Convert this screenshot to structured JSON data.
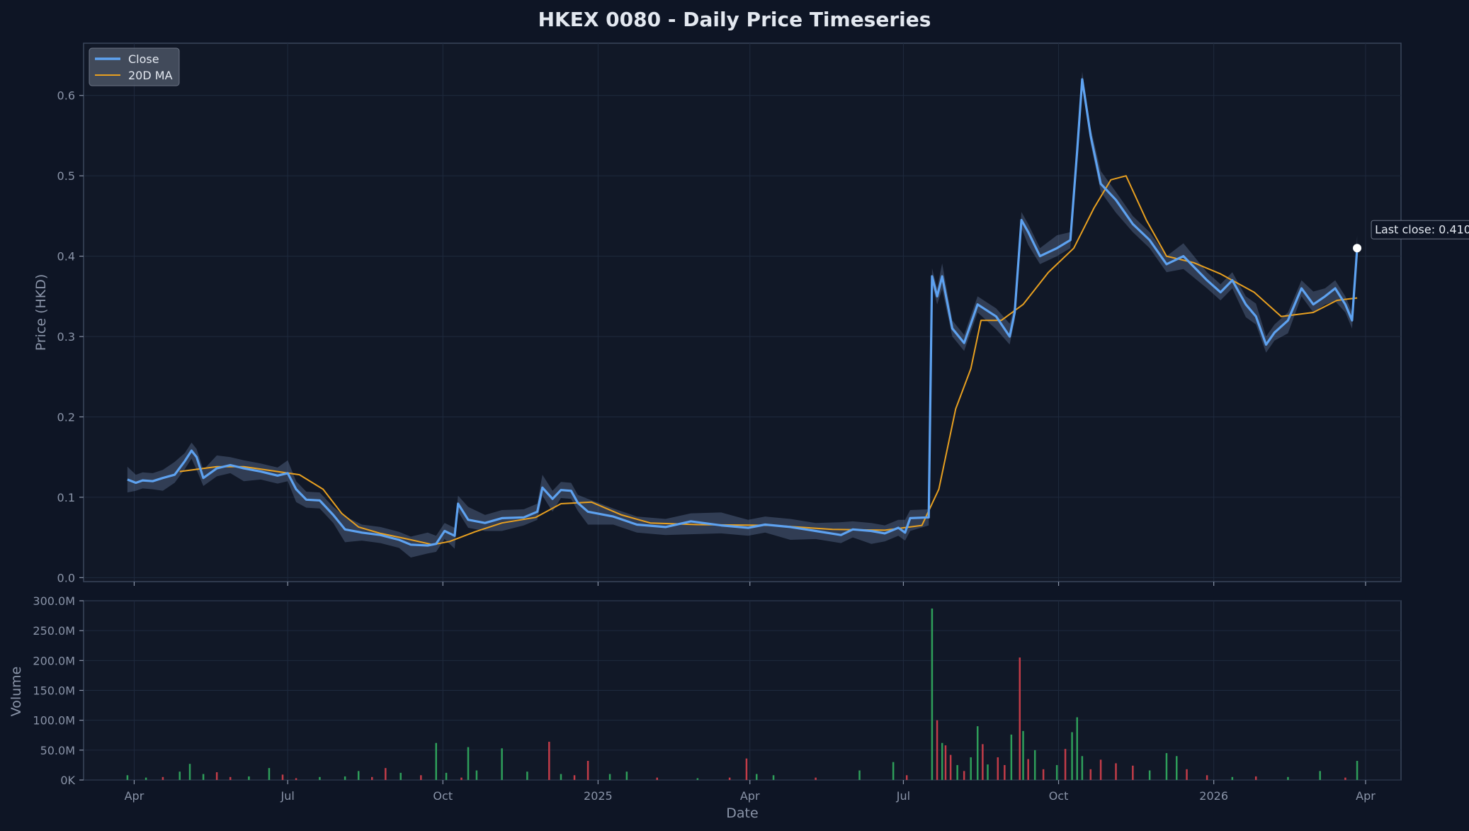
{
  "chart_data": {
    "type": "line",
    "title": "HKEX 0080 - Daily Price Timeseries",
    "xlabel": "Date",
    "ylabel": "Price (HKD)",
    "y2label": "Volume",
    "ylim": [
      -0.005,
      0.665
    ],
    "vol_ylim": [
      0,
      300000000
    ],
    "x_range": [
      "2024-03-02",
      "2026-04-22"
    ],
    "price_ticks": [
      "0.0",
      "0.1",
      "0.2",
      "0.3",
      "0.4",
      "0.5",
      "0.6"
    ],
    "price_tick_values": [
      0.0,
      0.1,
      0.2,
      0.3,
      0.4,
      0.5,
      0.6
    ],
    "volume_ticks": [
      "0K",
      "50.0M",
      "100.0M",
      "150.0M",
      "200.0M",
      "250.0M",
      "300.0M"
    ],
    "volume_tick_values": [
      0,
      50000000,
      100000000,
      150000000,
      200000000,
      250000000,
      300000000
    ],
    "x_ticks": [
      {
        "label": "Apr",
        "date": "2024-04-01"
      },
      {
        "label": "Jul",
        "date": "2024-07-01"
      },
      {
        "label": "Oct",
        "date": "2024-10-01"
      },
      {
        "label": "2025",
        "date": "2025-01-01"
      },
      {
        "label": "Apr",
        "date": "2025-04-01"
      },
      {
        "label": "Jul",
        "date": "2025-07-01"
      },
      {
        "label": "Oct",
        "date": "2025-10-01"
      },
      {
        "label": "2026",
        "date": "2026-01-01"
      },
      {
        "label": "Apr",
        "date": "2026-04-01"
      }
    ],
    "grid": true,
    "legend_position": "top-left",
    "colors": {
      "close": "#5ea2f0",
      "ma": "#e8a020",
      "band": "#6e84a8",
      "vol_up": "#2e9e5a",
      "vol_down": "#c23c48",
      "grid": "#1f2a3e",
      "frame": "#3a465c",
      "background": "#0e1525",
      "plot_bg": "#111827"
    },
    "series": [
      {
        "name": "Close",
        "points": [
          [
            "2024-03-28",
            0.122
          ],
          [
            "2024-04-02",
            0.118
          ],
          [
            "2024-04-06",
            0.121
          ],
          [
            "2024-04-12",
            0.12
          ],
          [
            "2024-04-18",
            0.124
          ],
          [
            "2024-04-25",
            0.128
          ],
          [
            "2024-05-01",
            0.145
          ],
          [
            "2024-05-05",
            0.158
          ],
          [
            "2024-05-08",
            0.15
          ],
          [
            "2024-05-12",
            0.124
          ],
          [
            "2024-05-20",
            0.136
          ],
          [
            "2024-05-28",
            0.14
          ],
          [
            "2024-06-05",
            0.136
          ],
          [
            "2024-06-15",
            0.132
          ],
          [
            "2024-06-25",
            0.127
          ],
          [
            "2024-07-01",
            0.13
          ],
          [
            "2024-07-06",
            0.11
          ],
          [
            "2024-07-12",
            0.097
          ],
          [
            "2024-07-20",
            0.096
          ],
          [
            "2024-07-28",
            0.078
          ],
          [
            "2024-08-04",
            0.06
          ],
          [
            "2024-08-14",
            0.056
          ],
          [
            "2024-08-25",
            0.053
          ],
          [
            "2024-09-05",
            0.047
          ],
          [
            "2024-09-12",
            0.041
          ],
          [
            "2024-09-22",
            0.04
          ],
          [
            "2024-09-27",
            0.042
          ],
          [
            "2024-10-02",
            0.058
          ],
          [
            "2024-10-08",
            0.052
          ],
          [
            "2024-10-10",
            0.092
          ],
          [
            "2024-10-16",
            0.072
          ],
          [
            "2024-10-26",
            0.068
          ],
          [
            "2024-11-05",
            0.074
          ],
          [
            "2024-11-18",
            0.075
          ],
          [
            "2024-11-26",
            0.082
          ],
          [
            "2024-11-29",
            0.112
          ],
          [
            "2024-12-05",
            0.098
          ],
          [
            "2024-12-10",
            0.109
          ],
          [
            "2024-12-16",
            0.108
          ],
          [
            "2024-12-20",
            0.093
          ],
          [
            "2024-12-26",
            0.082
          ],
          [
            "2025-01-10",
            0.076
          ],
          [
            "2025-01-24",
            0.066
          ],
          [
            "2025-02-10",
            0.063
          ],
          [
            "2025-02-25",
            0.07
          ],
          [
            "2025-03-15",
            0.065
          ],
          [
            "2025-03-31",
            0.062
          ],
          [
            "2025-04-10",
            0.066
          ],
          [
            "2025-04-25",
            0.063
          ],
          [
            "2025-05-10",
            0.058
          ],
          [
            "2025-05-25",
            0.053
          ],
          [
            "2025-06-01",
            0.06
          ],
          [
            "2025-06-12",
            0.058
          ],
          [
            "2025-06-20",
            0.055
          ],
          [
            "2025-06-28",
            0.062
          ],
          [
            "2025-07-02",
            0.056
          ],
          [
            "2025-07-05",
            0.074
          ],
          [
            "2025-07-16",
            0.075
          ],
          [
            "2025-07-18",
            0.375
          ],
          [
            "2025-07-21",
            0.35
          ],
          [
            "2025-07-24",
            0.375
          ],
          [
            "2025-07-30",
            0.31
          ],
          [
            "2025-08-06",
            0.292
          ],
          [
            "2025-08-14",
            0.34
          ],
          [
            "2025-08-25",
            0.325
          ],
          [
            "2025-09-02",
            0.3
          ],
          [
            "2025-09-05",
            0.33
          ],
          [
            "2025-09-09",
            0.445
          ],
          [
            "2025-09-13",
            0.43
          ],
          [
            "2025-09-20",
            0.4
          ],
          [
            "2025-09-30",
            0.41
          ],
          [
            "2025-10-08",
            0.42
          ],
          [
            "2025-10-12",
            0.53
          ],
          [
            "2025-10-15",
            0.62
          ],
          [
            "2025-10-20",
            0.55
          ],
          [
            "2025-10-26",
            0.49
          ],
          [
            "2025-11-04",
            0.47
          ],
          [
            "2025-11-14",
            0.44
          ],
          [
            "2025-11-24",
            0.42
          ],
          [
            "2025-12-04",
            0.39
          ],
          [
            "2025-12-14",
            0.4
          ],
          [
            "2025-12-28",
            0.37
          ],
          [
            "2026-01-05",
            0.355
          ],
          [
            "2026-01-12",
            0.37
          ],
          [
            "2026-01-20",
            0.34
          ],
          [
            "2026-01-26",
            0.325
          ],
          [
            "2026-02-01",
            0.29
          ],
          [
            "2026-02-06",
            0.305
          ],
          [
            "2026-02-14",
            0.32
          ],
          [
            "2026-02-22",
            0.36
          ],
          [
            "2026-03-01",
            0.34
          ],
          [
            "2026-03-08",
            0.35
          ],
          [
            "2026-03-14",
            0.36
          ],
          [
            "2026-03-20",
            0.34
          ],
          [
            "2026-03-24",
            0.32
          ],
          [
            "2026-03-27",
            0.41
          ]
        ]
      },
      {
        "name": "20D MA",
        "points": [
          [
            "2024-04-28",
            0.132
          ],
          [
            "2024-05-20",
            0.138
          ],
          [
            "2024-06-05",
            0.138
          ],
          [
            "2024-06-25",
            0.132
          ],
          [
            "2024-07-08",
            0.128
          ],
          [
            "2024-07-22",
            0.11
          ],
          [
            "2024-08-02",
            0.08
          ],
          [
            "2024-08-12",
            0.063
          ],
          [
            "2024-08-25",
            0.055
          ],
          [
            "2024-09-10",
            0.048
          ],
          [
            "2024-09-25",
            0.041
          ],
          [
            "2024-10-05",
            0.045
          ],
          [
            "2024-10-20",
            0.057
          ],
          [
            "2024-11-05",
            0.068
          ],
          [
            "2024-11-25",
            0.075
          ],
          [
            "2024-12-10",
            0.092
          ],
          [
            "2024-12-28",
            0.094
          ],
          [
            "2025-01-15",
            0.078
          ],
          [
            "2025-02-01",
            0.068
          ],
          [
            "2025-03-01",
            0.066
          ],
          [
            "2025-04-15",
            0.065
          ],
          [
            "2025-05-20",
            0.06
          ],
          [
            "2025-06-20",
            0.059
          ],
          [
            "2025-07-12",
            0.065
          ],
          [
            "2025-07-22",
            0.11
          ],
          [
            "2025-08-01",
            0.21
          ],
          [
            "2025-08-10",
            0.26
          ],
          [
            "2025-08-16",
            0.32
          ],
          [
            "2025-08-28",
            0.32
          ],
          [
            "2025-09-10",
            0.34
          ],
          [
            "2025-09-25",
            0.38
          ],
          [
            "2025-10-10",
            0.41
          ],
          [
            "2025-10-22",
            0.46
          ],
          [
            "2025-11-01",
            0.495
          ],
          [
            "2025-11-10",
            0.5
          ],
          [
            "2025-11-22",
            0.445
          ],
          [
            "2025-12-04",
            0.4
          ],
          [
            "2025-12-20",
            0.392
          ],
          [
            "2026-01-05",
            0.378
          ],
          [
            "2026-01-25",
            0.355
          ],
          [
            "2026-02-10",
            0.325
          ],
          [
            "2026-03-01",
            0.33
          ],
          [
            "2026-03-15",
            0.345
          ],
          [
            "2026-03-27",
            0.348
          ]
        ]
      }
    ],
    "volume": [
      [
        "2024-03-28",
        8000000,
        "up"
      ],
      [
        "2024-04-08",
        4000000,
        "up"
      ],
      [
        "2024-04-18",
        5000000,
        "down"
      ],
      [
        "2024-04-28",
        14000000,
        "up"
      ],
      [
        "2024-05-04",
        27000000,
        "up"
      ],
      [
        "2024-05-12",
        10000000,
        "up"
      ],
      [
        "2024-05-20",
        13000000,
        "down"
      ],
      [
        "2024-05-28",
        5000000,
        "down"
      ],
      [
        "2024-06-08",
        6000000,
        "up"
      ],
      [
        "2024-06-20",
        20000000,
        "up"
      ],
      [
        "2024-06-28",
        9000000,
        "down"
      ],
      [
        "2024-07-06",
        3000000,
        "down"
      ],
      [
        "2024-07-20",
        5000000,
        "up"
      ],
      [
        "2024-08-04",
        6000000,
        "up"
      ],
      [
        "2024-08-12",
        15000000,
        "up"
      ],
      [
        "2024-08-20",
        5000000,
        "down"
      ],
      [
        "2024-08-28",
        20000000,
        "down"
      ],
      [
        "2024-09-06",
        12000000,
        "up"
      ],
      [
        "2024-09-18",
        8000000,
        "down"
      ],
      [
        "2024-09-27",
        62000000,
        "up"
      ],
      [
        "2024-10-03",
        12000000,
        "up"
      ],
      [
        "2024-10-12",
        4000000,
        "down"
      ],
      [
        "2024-10-16",
        55000000,
        "up"
      ],
      [
        "2024-10-21",
        16000000,
        "up"
      ],
      [
        "2024-11-05",
        53000000,
        "up"
      ],
      [
        "2024-11-20",
        14000000,
        "up"
      ],
      [
        "2024-12-03",
        64000000,
        "down"
      ],
      [
        "2024-12-10",
        10000000,
        "up"
      ],
      [
        "2024-12-18",
        8000000,
        "down"
      ],
      [
        "2024-12-26",
        32000000,
        "down"
      ],
      [
        "2025-01-08",
        10000000,
        "up"
      ],
      [
        "2025-01-18",
        14000000,
        "up"
      ],
      [
        "2025-02-05",
        4000000,
        "down"
      ],
      [
        "2025-03-01",
        3000000,
        "up"
      ],
      [
        "2025-03-20",
        4000000,
        "down"
      ],
      [
        "2025-03-30",
        36000000,
        "down"
      ],
      [
        "2025-04-05",
        10000000,
        "up"
      ],
      [
        "2025-04-15",
        8000000,
        "up"
      ],
      [
        "2025-05-10",
        4000000,
        "down"
      ],
      [
        "2025-06-05",
        16000000,
        "up"
      ],
      [
        "2025-06-25",
        30000000,
        "up"
      ],
      [
        "2025-07-03",
        8000000,
        "down"
      ],
      [
        "2025-07-18",
        287000000,
        "up"
      ],
      [
        "2025-07-21",
        100000000,
        "down"
      ],
      [
        "2025-07-24",
        62000000,
        "up"
      ],
      [
        "2025-07-26",
        58000000,
        "down"
      ],
      [
        "2025-07-29",
        42000000,
        "down"
      ],
      [
        "2025-08-02",
        25000000,
        "up"
      ],
      [
        "2025-08-06",
        15000000,
        "down"
      ],
      [
        "2025-08-10",
        38000000,
        "up"
      ],
      [
        "2025-08-14",
        90000000,
        "up"
      ],
      [
        "2025-08-17",
        60000000,
        "down"
      ],
      [
        "2025-08-20",
        26000000,
        "up"
      ],
      [
        "2025-08-26",
        38000000,
        "down"
      ],
      [
        "2025-08-30",
        25000000,
        "down"
      ],
      [
        "2025-09-03",
        76000000,
        "up"
      ],
      [
        "2025-09-08",
        205000000,
        "down"
      ],
      [
        "2025-09-10",
        82000000,
        "up"
      ],
      [
        "2025-09-13",
        35000000,
        "down"
      ],
      [
        "2025-09-17",
        50000000,
        "up"
      ],
      [
        "2025-09-22",
        18000000,
        "down"
      ],
      [
        "2025-09-30",
        25000000,
        "up"
      ],
      [
        "2025-10-05",
        52000000,
        "down"
      ],
      [
        "2025-10-09",
        80000000,
        "up"
      ],
      [
        "2025-10-12",
        105000000,
        "up"
      ],
      [
        "2025-10-15",
        40000000,
        "up"
      ],
      [
        "2025-10-20",
        18000000,
        "down"
      ],
      [
        "2025-10-26",
        34000000,
        "down"
      ],
      [
        "2025-11-04",
        28000000,
        "down"
      ],
      [
        "2025-11-14",
        24000000,
        "down"
      ],
      [
        "2025-11-24",
        16000000,
        "up"
      ],
      [
        "2025-12-04",
        45000000,
        "up"
      ],
      [
        "2025-12-10",
        40000000,
        "up"
      ],
      [
        "2025-12-16",
        18000000,
        "down"
      ],
      [
        "2025-12-28",
        8000000,
        "down"
      ],
      [
        "2026-01-12",
        5000000,
        "up"
      ],
      [
        "2026-01-26",
        6000000,
        "down"
      ],
      [
        "2026-02-14",
        5000000,
        "up"
      ],
      [
        "2026-03-05",
        15000000,
        "up"
      ],
      [
        "2026-03-20",
        4000000,
        "down"
      ],
      [
        "2026-03-27",
        32000000,
        "up"
      ]
    ],
    "legend": [
      "Close",
      "20D MA"
    ],
    "annotation": {
      "text": "Last close: 0.410",
      "date": "2026-03-27",
      "value": 0.41
    }
  }
}
